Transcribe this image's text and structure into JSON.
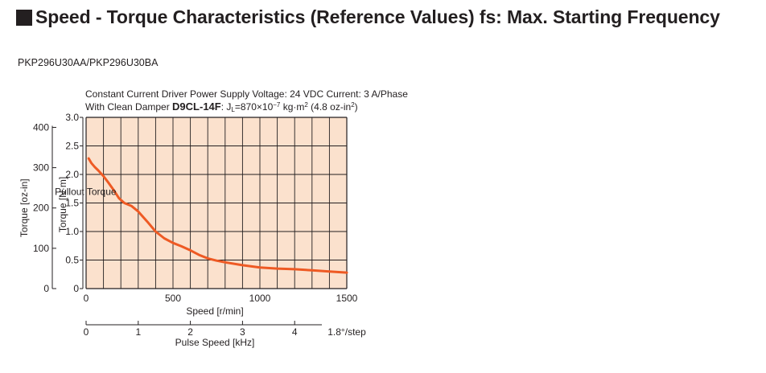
{
  "header": {
    "title": "Speed - Torque Characteristics (Reference Values) fs: Max. Starting Frequency"
  },
  "model_label": "PKP296U30AA/PKP296U30BA",
  "conditions": {
    "line1": "Constant Current Driver  Power Supply Voltage: 24 VDC  Current: 3 A/Phase",
    "line2_prefix": "With Clean Damper ",
    "damper_model": "D9CL-14F",
    "inertia_sym": ": J",
    "inertia_sub": "L",
    "inertia_text": "=870×10",
    "inertia_exp": "−7",
    "inertia_unit": " kg·m",
    "inertia_unit_exp": "2",
    "inertia_alt": " (4.8 oz-in",
    "inertia_alt_exp": "2",
    "inertia_alt_close": ")"
  },
  "colors": {
    "plot_bg": "#fbe1cd",
    "curve": "#ee5a24",
    "grid": "#231f20"
  },
  "chart_data": {
    "type": "line",
    "title": "",
    "xlabel": "Speed [r/min]",
    "ylabel": "Torque [N·m]",
    "ylabel_secondary": "Torque [oz-in]",
    "xlabel_secondary": "Pulse Speed [kHz]",
    "secondary_x_note": "1.8°/step",
    "xlim": [
      0,
      1500
    ],
    "ylim": [
      0,
      3.0
    ],
    "x_ticks": [
      "0",
      "500",
      "1000",
      "1500"
    ],
    "y_ticks": [
      "0",
      "0.5",
      "1.0",
      "1.5",
      "2.0",
      "2.5",
      "3.0"
    ],
    "y2_ticks": [
      "0",
      "100",
      "200",
      "300",
      "400"
    ],
    "x2_ticks": [
      "0",
      "1",
      "2",
      "3",
      "4"
    ],
    "grid": true,
    "series": [
      {
        "name": "Pullout Torque",
        "x": [
          15,
          30,
          50,
          70,
          100,
          130,
          160,
          190,
          220,
          260,
          300,
          350,
          400,
          450,
          500,
          550,
          600,
          650,
          700,
          750,
          800,
          900,
          1000,
          1100,
          1200,
          1300,
          1400,
          1500
        ],
        "y": [
          2.28,
          2.2,
          2.13,
          2.07,
          1.97,
          1.85,
          1.72,
          1.58,
          1.5,
          1.45,
          1.35,
          1.18,
          1.0,
          0.88,
          0.8,
          0.74,
          0.67,
          0.59,
          0.53,
          0.49,
          0.46,
          0.41,
          0.37,
          0.35,
          0.34,
          0.32,
          0.3,
          0.28
        ]
      }
    ],
    "annotations": [
      {
        "text": "Pullout Torque",
        "x": 255,
        "y": 1.7
      }
    ]
  }
}
